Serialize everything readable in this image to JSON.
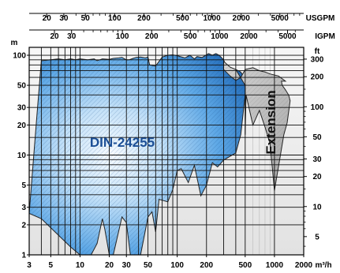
{
  "chart_data": {
    "type": "area",
    "x_scale": "log",
    "y_scale": "log",
    "x_range_m3h": [
      3,
      2000
    ],
    "y_range_m": [
      1,
      120
    ],
    "grid": true,
    "axes": {
      "bottom": {
        "unit": "m³/h",
        "ticks": [
          "3",
          "5",
          "10",
          "20",
          "30",
          "50",
          "100",
          "200",
          "500",
          "1000",
          "2000"
        ]
      },
      "top_usgpm": {
        "unit": "USGPM",
        "ticks": [
          "20",
          "30",
          "50",
          "100",
          "200",
          "500",
          "1000",
          "2000",
          "5000"
        ]
      },
      "top_igpm": {
        "unit": "IGPM",
        "ticks": [
          "20",
          "30",
          "100",
          "200",
          "500",
          "1000",
          "2000",
          "5000"
        ]
      },
      "left": {
        "unit": "m",
        "ticks": [
          "1",
          "2",
          "3",
          "5",
          "10",
          "20",
          "30",
          "50",
          "100"
        ]
      },
      "right": {
        "unit": "ft",
        "ticks": [
          "5",
          "10",
          "20",
          "30",
          "50",
          "100",
          "200",
          "300"
        ]
      }
    },
    "series": [
      {
        "name": "DIN-24255",
        "color": "#2f7fc8",
        "boundary_flow_m3h": [
          3,
          4,
          8,
          10,
          13,
          15,
          17,
          18,
          20,
          22,
          27,
          30,
          33,
          37,
          42,
          50,
          55,
          60,
          65,
          80,
          90,
          100,
          110,
          130,
          150,
          175,
          200,
          230,
          260,
          300,
          400,
          450,
          500,
          510,
          520,
          500,
          450,
          400,
          350,
          310,
          300,
          270,
          250,
          230,
          210,
          180,
          160,
          150,
          135,
          120,
          100,
          90,
          80,
          70,
          60,
          52,
          50,
          47,
          42,
          38,
          35,
          32,
          30,
          27,
          25,
          22,
          20,
          17,
          15,
          14,
          12,
          10,
          9,
          8,
          7,
          6,
          5,
          4,
          3.6,
          3
        ],
        "boundary_head_m": [
          2.6,
          2.3,
          1.2,
          1,
          1,
          1.3,
          2.3,
          1.8,
          1,
          1,
          2.4,
          2.1,
          1,
          1,
          1,
          2.4,
          2.7,
          1.7,
          3.6,
          3.4,
          4.5,
          7,
          7.3,
          5.3,
          7.9,
          3.9,
          5,
          8.4,
          7.6,
          8.9,
          10.5,
          16,
          40,
          50,
          50,
          58,
          68,
          72,
          75,
          83,
          90,
          100,
          104,
          100,
          104,
          95,
          97,
          92,
          100,
          94,
          99,
          101,
          100,
          96,
          78,
          80,
          96,
          94,
          96,
          95,
          93,
          90,
          90,
          95,
          94,
          93,
          91,
          92,
          88,
          92,
          90,
          92,
          90,
          92,
          90,
          92,
          90,
          88,
          25,
          2.6
        ]
      },
      {
        "name": "Extension",
        "color": "#c6c6c6",
        "boundary_flow_m3h": [
          500,
          510,
          600,
          700,
          800,
          900,
          1000,
          1150,
          1250,
          1350,
          1450,
          1400,
          1300,
          1200,
          1180,
          1300,
          1100,
          900,
          800,
          700,
          600,
          500,
          450,
          400,
          350,
          300,
          300,
          350,
          400,
          500
        ],
        "boundary_head_m": [
          16,
          40,
          20,
          28,
          19,
          13,
          4.4,
          9.9,
          16,
          21,
          35,
          40,
          45,
          50,
          55,
          55,
          62,
          65,
          68,
          70,
          75,
          72,
          60,
          56,
          62,
          72,
          87,
          76,
          72,
          50
        ]
      }
    ],
    "annotations": [
      "DIN-24255",
      "Extension"
    ]
  }
}
